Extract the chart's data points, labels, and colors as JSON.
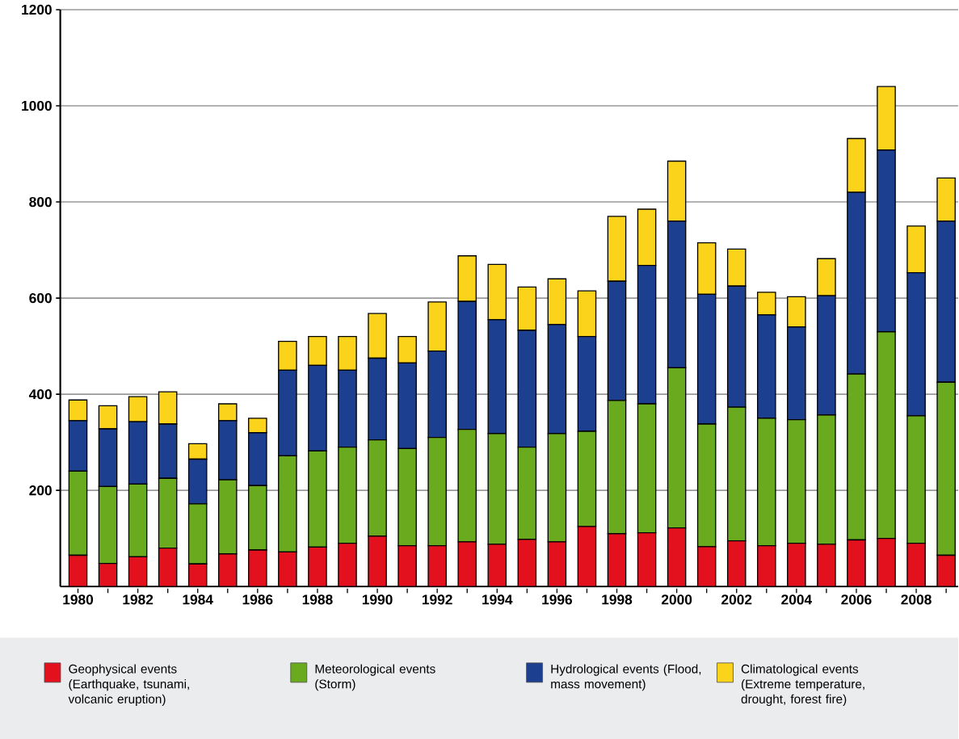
{
  "chart_data": {
    "type": "bar",
    "stacked": true,
    "categories": [
      "1980",
      null,
      "1982",
      null,
      "1984",
      null,
      "1986",
      null,
      "1988",
      null,
      "1990",
      null,
      "1992",
      null,
      "1994",
      null,
      "1996",
      null,
      "1998",
      null,
      "2000",
      null,
      "2002",
      null,
      "2004",
      null,
      "2006",
      null,
      "2008",
      null
    ],
    "series": [
      {
        "name": "Geophysical events (Earthquake, tsunami, volcanic eruption)",
        "color": "#e3101e",
        "values": [
          65,
          48,
          62,
          80,
          47,
          68,
          76,
          72,
          82,
          90,
          105,
          85,
          85,
          93,
          88,
          98,
          93,
          125,
          110,
          112,
          122,
          83,
          95,
          85,
          90,
          88,
          97,
          100,
          90,
          65
        ]
      },
      {
        "name": "Meteorological events (Storm)",
        "color": "#6aaa1e",
        "values": [
          175,
          160,
          151,
          145,
          125,
          154,
          134,
          200,
          200,
          200,
          200,
          202,
          225,
          234,
          230,
          192,
          225,
          198,
          277,
          268,
          333,
          255,
          278,
          265,
          257,
          269,
          345,
          430,
          265,
          360
        ]
      },
      {
        "name": "Hydrological events (Flood, mass movement)",
        "color": "#1c3f8f",
        "values": [
          105,
          120,
          130,
          113,
          93,
          123,
          110,
          178,
          178,
          160,
          170,
          178,
          180,
          266,
          237,
          243,
          227,
          197,
          248,
          288,
          305,
          270,
          252,
          215,
          193,
          248,
          378,
          378,
          298,
          335
        ]
      },
      {
        "name": "Climatological events (Extreme temperature, drought, forest fire)",
        "color": "#fbd31b",
        "values": [
          43,
          48,
          52,
          67,
          32,
          35,
          30,
          60,
          60,
          70,
          93,
          55,
          102,
          95,
          115,
          90,
          95,
          95,
          135,
          117,
          125,
          107,
          77,
          47,
          63,
          77,
          112,
          132,
          97,
          90
        ]
      }
    ],
    "ylim": [
      0,
      1200
    ],
    "yticks": [
      200,
      400,
      600,
      800,
      1000,
      1200
    ],
    "grid": "y",
    "legend": "bottom"
  }
}
